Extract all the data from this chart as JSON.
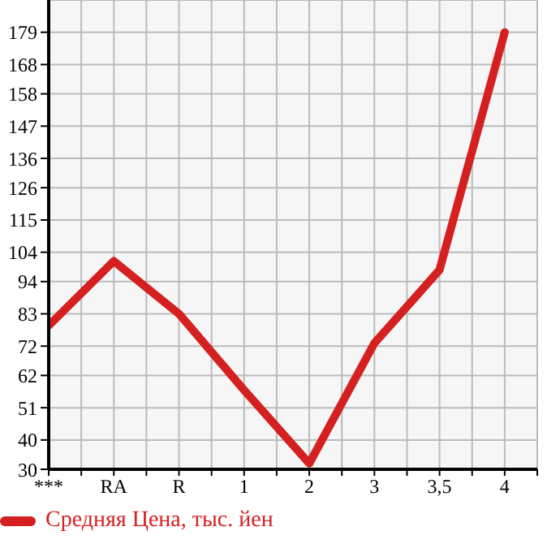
{
  "chart_data": {
    "type": "line",
    "categories": [
      "***",
      "RA",
      "R",
      "1",
      "2",
      "3",
      "3,5",
      "4"
    ],
    "series": [
      {
        "name": "Средняя Цена, тыс. йен",
        "color": "#d42020",
        "values": [
          79,
          101,
          83,
          57,
          32,
          73,
          98,
          179
        ]
      }
    ],
    "ylim": [
      30,
      190
    ],
    "yticks": [
      30,
      40,
      51,
      62,
      72,
      83,
      94,
      104,
      115,
      126,
      136,
      147,
      158,
      168,
      179
    ],
    "grid": true,
    "legend": "bottom left",
    "marker": "none",
    "line_style": "solid"
  }
}
